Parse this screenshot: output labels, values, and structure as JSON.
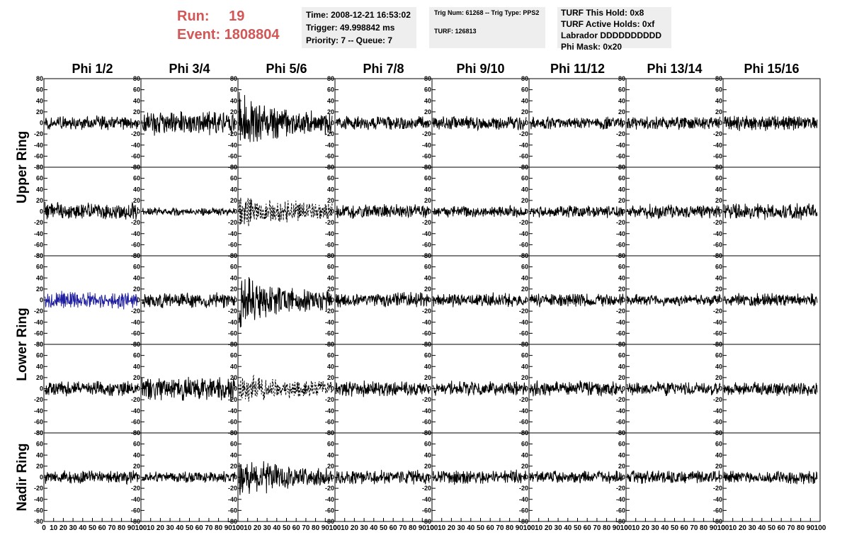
{
  "header": {
    "run_label": "Run:",
    "run_value": "19",
    "event_label": "Event:",
    "event_value": "1808804"
  },
  "info_time": {
    "time": "Time: 2008-12-21 16:53:02",
    "trigger": "Trigger: 49.998842 ms",
    "priority": "Priority: 7 -- Queue: 7"
  },
  "info_trig": {
    "trig": "Trig Num: 61268 -- Trig Type: PPS2",
    "turf": "TURF: 126813"
  },
  "info_turf": {
    "hold": "TURF This Hold: 0x8",
    "active_holds": "TURF Active Holds: 0xf",
    "labrador": "Labrador DDDDDDDDDD",
    "phi_mask": "Phi Mask: 0x20"
  },
  "colors": {
    "trace": "#000000",
    "highlight_trace": "#1f1fa0",
    "header_red": "#d35656",
    "info_bg": "#eeeeee"
  },
  "chart_data": {
    "type": "line",
    "columns": [
      "Phi 1/2",
      "Phi 3/4",
      "Phi 5/6",
      "Phi 7/8",
      "Phi 9/10",
      "Phi 11/12",
      "Phi 13/14",
      "Phi 15/16"
    ],
    "ring_labels": [
      {
        "name": "Upper Ring",
        "rows": [
          0,
          1
        ]
      },
      {
        "name": "Lower Ring",
        "rows": [
          2,
          3
        ]
      },
      {
        "name": "Nadir Ring",
        "rows": [
          4
        ]
      }
    ],
    "rows": 5,
    "xlim": [
      0,
      100
    ],
    "ylim": [
      -80,
      80
    ],
    "yticks": [
      -80,
      -60,
      -40,
      -20,
      0,
      20,
      40,
      60,
      80
    ],
    "ytick_labels": [
      "-80",
      "-60",
      "-40",
      "-20",
      "0",
      "20",
      "40",
      "60",
      "80"
    ],
    "xtick_labels": [
      "0",
      "10",
      "20",
      "30",
      "40",
      "50",
      "60",
      "70",
      "80",
      "90",
      "100"
    ],
    "samples": 260,
    "amplitudes": [
      [
        15,
        24,
        45,
        14,
        14,
        13,
        14,
        16
      ],
      [
        18,
        8,
        30,
        14,
        12,
        13,
        14,
        16
      ],
      [
        17,
        16,
        40,
        16,
        14,
        14,
        12,
        13
      ],
      [
        15,
        25,
        25,
        16,
        15,
        15,
        14,
        14
      ],
      [
        14,
        12,
        35,
        14,
        14,
        13,
        13,
        14
      ]
    ],
    "styles": [
      [
        "solid",
        "solid",
        "solid",
        "solid",
        "solid",
        "solid",
        "solid",
        "solid"
      ],
      [
        "solid",
        "solid",
        "dashed",
        "solid",
        "solid",
        "solid",
        "solid",
        "solid"
      ],
      [
        "blue",
        "solid",
        "solid",
        "solid",
        "solid",
        "solid",
        "solid",
        "solid"
      ],
      [
        "solid",
        "solid",
        "dashed",
        "solid",
        "solid",
        "solid",
        "solid",
        "solid"
      ],
      [
        "solid",
        "solid",
        "solid",
        "solid",
        "solid",
        "solid",
        "solid",
        "solid"
      ]
    ]
  }
}
